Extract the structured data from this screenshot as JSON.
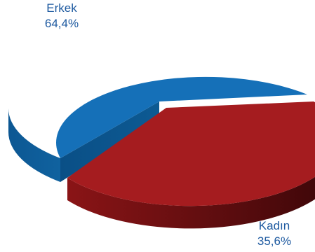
{
  "chart_data": {
    "type": "pie",
    "title": "",
    "slices": [
      {
        "label": "Erkek",
        "value": 64.4,
        "value_text": "64,4%",
        "color": "#1570b8",
        "side_color": "#0e5a96",
        "label_color": "#1e5aa0",
        "exploded": false
      },
      {
        "label": "Kadın",
        "value": 35.6,
        "value_text": "35,6%",
        "color": "#a51c1f",
        "side_color": "#6a0f11",
        "label_color": "#1e5aa0",
        "exploded": true
      }
    ],
    "legend": "none",
    "style": "3d"
  }
}
